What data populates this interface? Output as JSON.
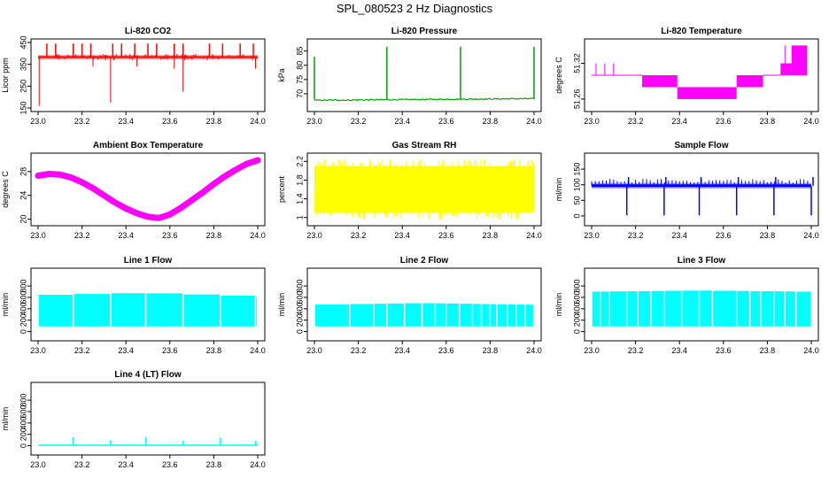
{
  "title": "SPL_080523  2 Hz Diagnostics",
  "chart_data": [
    {
      "id": "co2",
      "type": "line",
      "title": "Li-820 CO2",
      "ylabel": "Licor ppm",
      "color": "#ff0000",
      "xlim": [
        23.0,
        24.0
      ],
      "x_ticks": [
        23.0,
        23.2,
        23.4,
        23.6,
        23.8,
        24.0
      ],
      "ylim": [
        150,
        450
      ],
      "y_ticks": [
        150,
        250,
        350,
        450
      ],
      "baseline": 383,
      "band": [
        372,
        393
      ],
      "spikes_up": [
        23.04,
        23.08,
        23.16,
        23.2,
        23.24,
        23.34,
        23.38,
        23.44,
        23.5,
        23.54,
        23.62,
        23.66,
        23.78,
        23.84,
        23.92,
        23.98
      ],
      "spikes_up_to": 445,
      "spikes_down": [
        [
          23.005,
          160
        ],
        [
          23.33,
          175
        ],
        [
          23.66,
          225
        ],
        [
          23.99,
          330
        ],
        [
          23.25,
          340
        ],
        [
          23.45,
          340
        ],
        [
          23.62,
          330
        ]
      ]
    },
    {
      "id": "pressure",
      "type": "line",
      "title": "Li-820 Pressure",
      "ylabel": "kPa",
      "color": "#00a000",
      "xlim": [
        23.0,
        24.0
      ],
      "x_ticks": [
        23.0,
        23.2,
        23.4,
        23.6,
        23.8,
        24.0
      ],
      "ylim": [
        65,
        88
      ],
      "y_ticks": [
        70,
        75,
        80,
        85
      ],
      "baseline_start": 67.7,
      "baseline_end": 68.3,
      "spikes_up": [
        [
          23.0,
          83
        ],
        [
          23.33,
          86.5
        ],
        [
          23.665,
          86.5
        ],
        [
          24.0,
          86.5
        ]
      ]
    },
    {
      "id": "temperature",
      "type": "step",
      "title": "Li-820 Temperature",
      "ylabel": "degrees C",
      "color": "#ff00ff",
      "xlim": [
        23.0,
        24.0
      ],
      "x_ticks": [
        23.0,
        23.2,
        23.4,
        23.6,
        23.8,
        24.0
      ],
      "ylim": [
        51.245,
        51.355
      ],
      "y_ticks": [
        51.26,
        51.32
      ],
      "segments": [
        [
          23.0,
          23.23,
          51.3,
          51.3
        ],
        [
          23.23,
          23.39,
          51.28,
          51.3
        ],
        [
          23.39,
          23.66,
          51.26,
          51.28
        ],
        [
          23.66,
          23.78,
          51.28,
          51.3
        ],
        [
          23.78,
          23.86,
          51.3,
          51.3
        ],
        [
          23.86,
          23.91,
          51.3,
          51.32
        ],
        [
          23.91,
          23.98,
          51.3,
          51.35
        ]
      ],
      "spikes_up": [
        [
          23.02,
          51.32
        ],
        [
          23.06,
          51.32
        ],
        [
          23.1,
          51.32
        ],
        [
          23.88,
          51.35
        ]
      ]
    },
    {
      "id": "ambient",
      "type": "line",
      "title": "Ambient Box Temperature",
      "ylabel": "degrees C",
      "color": "#ff00ff",
      "xlim": [
        23.0,
        24.0
      ],
      "x_ticks": [
        23.0,
        23.2,
        23.4,
        23.6,
        23.8,
        24.0
      ],
      "ylim": [
        19.5,
        30.5
      ],
      "y_ticks": [
        20,
        24,
        28
      ],
      "x": [
        23.0,
        23.05,
        23.1,
        23.15,
        23.2,
        23.25,
        23.3,
        23.35,
        23.4,
        23.45,
        23.5,
        23.55,
        23.6,
        23.65,
        23.7,
        23.75,
        23.8,
        23.85,
        23.9,
        23.95,
        24.0
      ],
      "y": [
        27.3,
        27.6,
        27.5,
        27.0,
        26.2,
        25.2,
        24.0,
        22.8,
        21.8,
        21.0,
        20.4,
        20.2,
        20.8,
        21.9,
        23.2,
        24.5,
        25.9,
        27.2,
        28.3,
        29.3,
        29.9
      ]
    },
    {
      "id": "rh",
      "type": "noise",
      "title": "Gas Stream RH",
      "ylabel": "percent",
      "color": "#ffff00",
      "xlim": [
        23.0,
        24.0
      ],
      "x_ticks": [
        23.0,
        23.2,
        23.4,
        23.6,
        23.8,
        24.0
      ],
      "ylim": [
        0.9,
        2.3
      ],
      "y_ticks": [
        1.0,
        1.4,
        1.8,
        2.2
      ],
      "band": [
        1.1,
        2.1
      ],
      "extremes": [
        0.95,
        2.25
      ]
    },
    {
      "id": "sample_flow",
      "type": "line",
      "title": "Sample Flow",
      "ylabel": "ml/min",
      "color": "#0000ff",
      "xlim": [
        23.0,
        24.0
      ],
      "x_ticks": [
        23.0,
        23.2,
        23.4,
        23.6,
        23.8,
        24.0
      ],
      "ylim": [
        -20,
        190
      ],
      "y_ticks": [
        0,
        50,
        100,
        150
      ],
      "baseline": 97,
      "band": [
        88,
        106
      ],
      "drops": [
        23.16,
        23.33,
        23.49,
        23.66,
        23.83,
        24.0
      ],
      "drop_to": 2,
      "spike_to": 125
    },
    {
      "id": "line1",
      "type": "band",
      "title": "Line 1 Flow",
      "ylabel": "ml/min",
      "color": "#00ffff",
      "xlim": [
        23.0,
        24.0
      ],
      "x_ticks": [
        23.0,
        23.2,
        23.4,
        23.6,
        23.8,
        24.0
      ],
      "ylim": [
        -100,
        1050
      ],
      "y_ticks": [
        0,
        200,
        400,
        600,
        800
      ],
      "low": 90,
      "high_start": 640,
      "high_mid": 680,
      "high_end": 620,
      "gaps": [
        23.16,
        23.33,
        23.49,
        23.66,
        23.83,
        23.99
      ]
    },
    {
      "id": "line2",
      "type": "band",
      "title": "Line 2 Flow",
      "ylabel": "ml/min",
      "color": "#00ffff",
      "xlim": [
        23.0,
        24.0
      ],
      "x_ticks": [
        23.0,
        23.2,
        23.4,
        23.6,
        23.8,
        24.0
      ],
      "ylim": [
        -100,
        1050
      ],
      "y_ticks": [
        0,
        200,
        400,
        600,
        800
      ],
      "low": 90,
      "high_start": 470,
      "high_mid": 500,
      "high_end": 470,
      "gaps": [
        23.16,
        23.27,
        23.33,
        23.41,
        23.49,
        23.55,
        23.6,
        23.66,
        23.72,
        23.76,
        23.8,
        23.83,
        23.88,
        23.92,
        23.96
      ]
    },
    {
      "id": "line3",
      "type": "band",
      "title": "Line 3 Flow",
      "ylabel": "ml/min",
      "color": "#00ffff",
      "xlim": [
        23.0,
        24.0
      ],
      "x_ticks": [
        23.0,
        23.2,
        23.4,
        23.6,
        23.8,
        24.0
      ],
      "ylim": [
        -100,
        1050
      ],
      "y_ticks": [
        0,
        200,
        400,
        600,
        800
      ],
      "low": 90,
      "high_start": 700,
      "high_mid": 720,
      "high_end": 700,
      "gaps": [
        23.04,
        23.08,
        23.16,
        23.21,
        23.27,
        23.33,
        23.41,
        23.49,
        23.55,
        23.66,
        23.72,
        23.77,
        23.83,
        23.88,
        23.93
      ]
    },
    {
      "id": "line4",
      "type": "line",
      "title": "Line 4 (LT) Flow",
      "ylabel": "ml/min",
      "color": "#00ffff",
      "xlim": [
        23.0,
        24.0
      ],
      "x_ticks": [
        23.0,
        23.2,
        23.4,
        23.6,
        23.8,
        24.0
      ],
      "ylim": [
        -100,
        1050
      ],
      "y_ticks": [
        0,
        200,
        400,
        600,
        800
      ],
      "baseline": 8,
      "spikes_up": [
        [
          23.16,
          150
        ],
        [
          23.33,
          100
        ],
        [
          23.49,
          155
        ],
        [
          23.66,
          90
        ],
        [
          23.83,
          140
        ],
        [
          23.99,
          85
        ]
      ]
    }
  ]
}
